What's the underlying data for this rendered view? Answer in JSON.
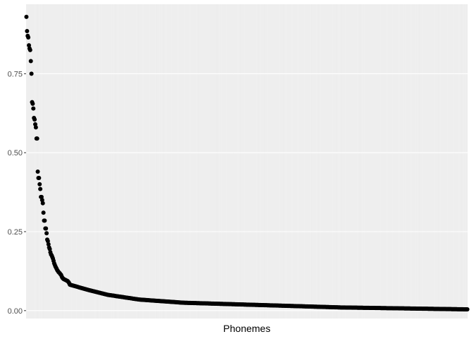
{
  "chart_data": {
    "type": "scatter",
    "title": "",
    "xlabel": "Phonemes",
    "ylabel": "",
    "x_tick_labels": "none",
    "y_ticks": [
      0.0,
      0.25,
      0.5,
      0.75
    ],
    "y_tick_labels": [
      "0.00",
      "0.25",
      "0.50",
      "0.75"
    ],
    "ylim": [
      -0.025,
      0.97
    ],
    "n_points": 700,
    "grid": "on (vertical line per phoneme; horizontal major gridlines)",
    "legend": "none",
    "series": [
      {
        "values": [
          0.93,
          0.885,
          0.87,
          0.865,
          0.84,
          0.83,
          0.825,
          0.79,
          0.75,
          0.66,
          0.655,
          0.64,
          0.61,
          0.605,
          0.59,
          0.58,
          0.545,
          0.545,
          0.44,
          0.42,
          0.42,
          0.4,
          0.385,
          0.36,
          0.36,
          0.35,
          0.34,
          0.31,
          0.285,
          0.285,
          0.26,
          0.26,
          0.245,
          0.225,
          0.22,
          0.21,
          0.2,
          0.195,
          0.185,
          0.178,
          0.175,
          0.17,
          0.165,
          0.158,
          0.15,
          0.145,
          0.14,
          0.136,
          0.132,
          0.128,
          0.125,
          0.122,
          0.12,
          0.118,
          0.115,
          0.113,
          0.108,
          0.104,
          0.102,
          0.1,
          0.099,
          0.098,
          0.097,
          0.096,
          0.095,
          0.094,
          0.092,
          0.09,
          0.086,
          0.082
        ],
        "tail_points": [
          {
            "rank": 100,
            "value": 0.065
          },
          {
            "rank": 130,
            "value": 0.05
          },
          {
            "rank": 180,
            "value": 0.035
          },
          {
            "rank": 250,
            "value": 0.025
          },
          {
            "rank": 400,
            "value": 0.016
          },
          {
            "rank": 500,
            "value": 0.01
          },
          {
            "rank": 700,
            "value": 0.004
          }
        ]
      }
    ],
    "colors": {
      "panel_bg": "#e8e8e8",
      "grid": "#ffffff",
      "point": "#000000",
      "tick_label": "#4d4d4d",
      "axis_title": "#000000"
    }
  }
}
